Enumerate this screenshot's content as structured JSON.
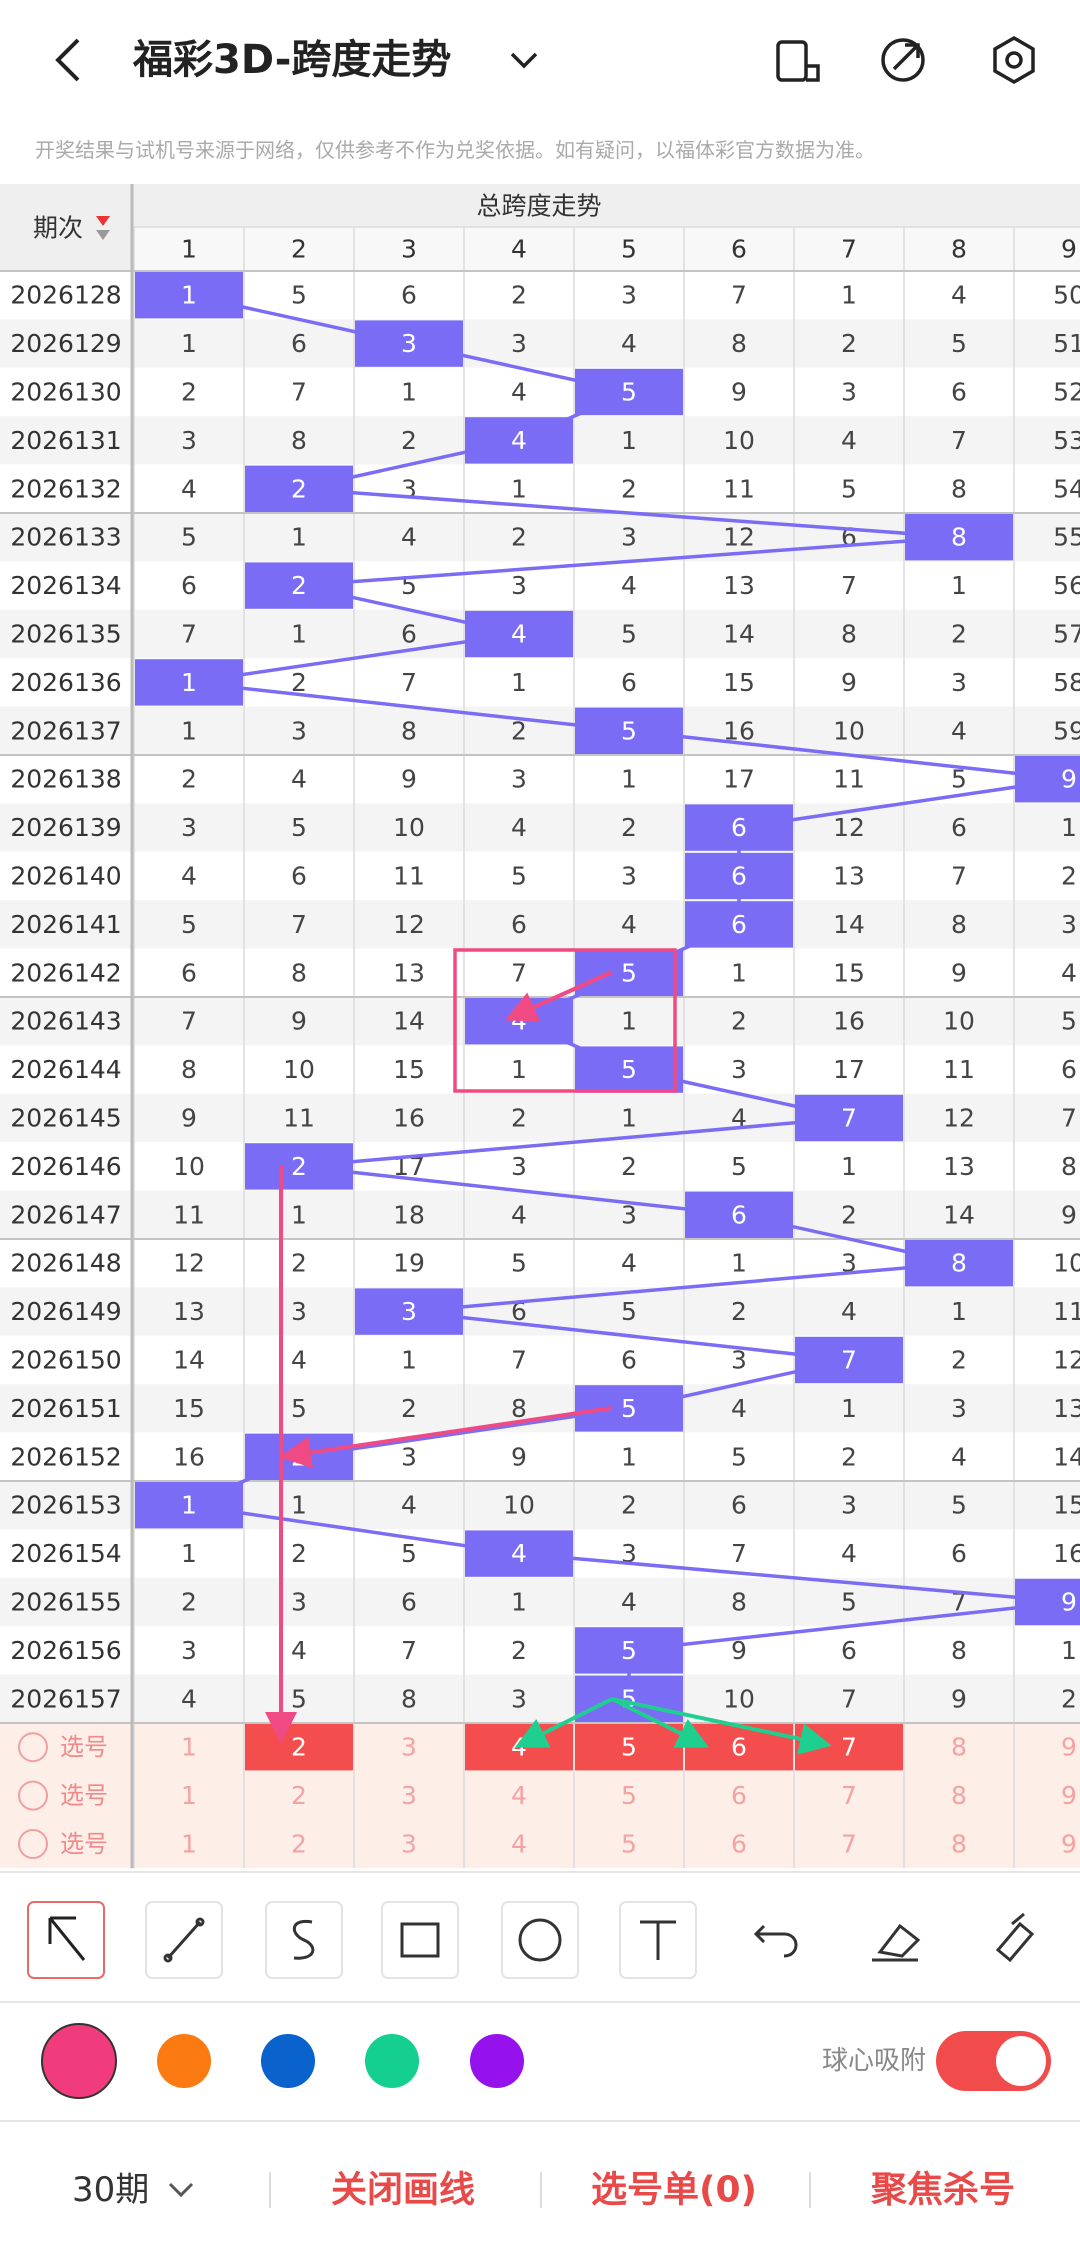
{
  "header": {
    "title": "福彩3D-跨度走势"
  },
  "notice": "开奖结果与试机号来源于网络，仅供参考不作为兑奖依据。如有疑问，以福体彩官方数据为准。",
  "table": {
    "period_header": "期次",
    "group_header": "总跨度走势",
    "columns": [
      1,
      2,
      3,
      4,
      5,
      6,
      7,
      8,
      9
    ],
    "hit_color": "#7b6cf6",
    "rows": [
      {
        "period": "2026128",
        "cells": [
          1,
          5,
          6,
          2,
          3,
          7,
          1,
          4,
          50
        ],
        "hit": 0
      },
      {
        "period": "2026129",
        "cells": [
          1,
          6,
          3,
          3,
          4,
          8,
          2,
          5,
          51
        ],
        "hit": 2
      },
      {
        "period": "2026130",
        "cells": [
          2,
          7,
          1,
          4,
          5,
          9,
          3,
          6,
          52
        ],
        "hit": 4
      },
      {
        "period": "2026131",
        "cells": [
          3,
          8,
          2,
          4,
          1,
          10,
          4,
          7,
          53
        ],
        "hit": 3
      },
      {
        "period": "2026132",
        "cells": [
          4,
          2,
          3,
          1,
          2,
          11,
          5,
          8,
          54
        ],
        "hit": 1
      },
      {
        "period": "2026133",
        "cells": [
          5,
          1,
          4,
          2,
          3,
          12,
          6,
          8,
          55
        ],
        "hit": 7
      },
      {
        "period": "2026134",
        "cells": [
          6,
          2,
          5,
          3,
          4,
          13,
          7,
          1,
          56
        ],
        "hit": 1
      },
      {
        "period": "2026135",
        "cells": [
          7,
          1,
          6,
          4,
          5,
          14,
          8,
          2,
          57
        ],
        "hit": 3
      },
      {
        "period": "2026136",
        "cells": [
          1,
          2,
          7,
          1,
          6,
          15,
          9,
          3,
          58
        ],
        "hit": 0
      },
      {
        "period": "2026137",
        "cells": [
          1,
          3,
          8,
          2,
          5,
          16,
          10,
          4,
          59
        ],
        "hit": 4
      },
      {
        "period": "2026138",
        "cells": [
          2,
          4,
          9,
          3,
          1,
          17,
          11,
          5,
          9
        ],
        "hit": 8
      },
      {
        "period": "2026139",
        "cells": [
          3,
          5,
          10,
          4,
          2,
          6,
          12,
          6,
          1
        ],
        "hit": 5
      },
      {
        "period": "2026140",
        "cells": [
          4,
          6,
          11,
          5,
          3,
          6,
          13,
          7,
          2
        ],
        "hit": 5
      },
      {
        "period": "2026141",
        "cells": [
          5,
          7,
          12,
          6,
          4,
          6,
          14,
          8,
          3
        ],
        "hit": 5
      },
      {
        "period": "2026142",
        "cells": [
          6,
          8,
          13,
          7,
          5,
          1,
          15,
          9,
          4
        ],
        "hit": 4
      },
      {
        "period": "2026143",
        "cells": [
          7,
          9,
          14,
          4,
          1,
          2,
          16,
          10,
          5
        ],
        "hit": 3
      },
      {
        "period": "2026144",
        "cells": [
          8,
          10,
          15,
          1,
          5,
          3,
          17,
          11,
          6
        ],
        "hit": 4
      },
      {
        "period": "2026145",
        "cells": [
          9,
          11,
          16,
          2,
          1,
          4,
          7,
          12,
          7
        ],
        "hit": 6
      },
      {
        "period": "2026146",
        "cells": [
          10,
          2,
          17,
          3,
          2,
          5,
          1,
          13,
          8
        ],
        "hit": 1
      },
      {
        "period": "2026147",
        "cells": [
          11,
          1,
          18,
          4,
          3,
          6,
          2,
          14,
          9
        ],
        "hit": 5
      },
      {
        "period": "2026148",
        "cells": [
          12,
          2,
          19,
          5,
          4,
          1,
          3,
          8,
          10
        ],
        "hit": 7
      },
      {
        "period": "2026149",
        "cells": [
          13,
          3,
          3,
          6,
          5,
          2,
          4,
          1,
          11
        ],
        "hit": 2
      },
      {
        "period": "2026150",
        "cells": [
          14,
          4,
          1,
          7,
          6,
          3,
          7,
          2,
          12
        ],
        "hit": 6
      },
      {
        "period": "2026151",
        "cells": [
          15,
          5,
          2,
          8,
          5,
          4,
          1,
          3,
          13
        ],
        "hit": 4
      },
      {
        "period": "2026152",
        "cells": [
          16,
          2,
          3,
          9,
          1,
          5,
          2,
          4,
          14
        ],
        "hit": 1
      },
      {
        "period": "2026153",
        "cells": [
          1,
          1,
          4,
          10,
          2,
          6,
          3,
          5,
          15
        ],
        "hit": 0
      },
      {
        "period": "2026154",
        "cells": [
          1,
          2,
          5,
          4,
          3,
          7,
          4,
          6,
          16
        ],
        "hit": 3
      },
      {
        "period": "2026155",
        "cells": [
          2,
          3,
          6,
          1,
          4,
          8,
          5,
          7,
          9
        ],
        "hit": 8
      },
      {
        "period": "2026156",
        "cells": [
          3,
          4,
          7,
          2,
          5,
          9,
          6,
          8,
          1
        ],
        "hit": 4
      },
      {
        "period": "2026157",
        "cells": [
          4,
          5,
          8,
          3,
          5,
          10,
          7,
          9,
          2
        ],
        "hit": 4
      }
    ]
  },
  "selection": {
    "label": "选号",
    "selected_color": "#f44d4d",
    "rows": [
      {
        "selected": [
          1,
          3,
          4,
          5,
          6
        ]
      },
      {
        "selected": []
      },
      {
        "selected": []
      }
    ]
  },
  "palette": {
    "colors": [
      "#f03c7c",
      "#fb7a12",
      "#0a63cc",
      "#14cf8f",
      "#9512ec"
    ]
  },
  "toggle": {
    "label": "球心吸附",
    "on": true
  },
  "footer": {
    "period_count": "30期",
    "buttons": [
      "关闭画线",
      "选号单(0)",
      "聚焦杀号"
    ]
  }
}
